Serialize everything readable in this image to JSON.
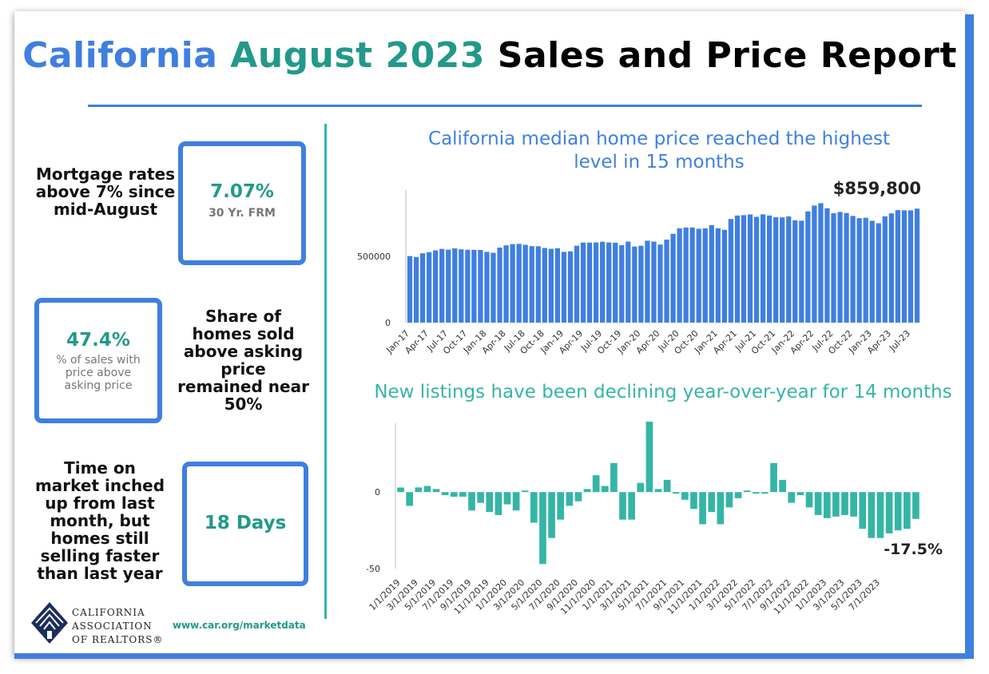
{
  "title": {
    "part1": "California",
    "part2": "August 2023",
    "part3": "Sales and Price Report"
  },
  "colors": {
    "accent_blue": "#3f7fe0",
    "accent_teal": "#35b5a5",
    "value_teal": "#22998a"
  },
  "stats": {
    "mortgage": {
      "label": "Mortgage rates above 7% since mid-August",
      "value": "7.07%",
      "sub": "30 Yr. FRM"
    },
    "asking": {
      "label": "Share of homes sold above asking price remained near 50%",
      "value": "47.4%",
      "sub": "% of sales with price above asking price"
    },
    "market": {
      "label": "Time on market inched up from last month, but homes still selling faster than last year",
      "value": "18 Days"
    }
  },
  "footer": {
    "logo_line1": "CALIFORNIA",
    "logo_line2": "ASSOCIATION",
    "logo_line3": "OF REALTORS®",
    "logo_icon": "car-logo-icon",
    "url": "www.car.org/marketdata"
  },
  "chart_data": [
    {
      "type": "bar",
      "title": "California median home price reached the highest level in 15 months",
      "annotation": "$859,800",
      "ylim": [
        0,
        1000000
      ],
      "yticks": [
        0,
        500000
      ],
      "ytick_labels": [
        "0",
        "500000"
      ],
      "xtick_labels": [
        "Jan-17",
        "Apr-17",
        "Jul-17",
        "Oct-17",
        "Jan-18",
        "Apr-18",
        "Jul-18",
        "Oct-18",
        "Jan-19",
        "Apr-19",
        "Jul-19",
        "Oct-19",
        "Jan-20",
        "Apr-20",
        "Jul-20",
        "Oct-20",
        "Jan-21",
        "Apr-21",
        "Jul-21",
        "Oct-21",
        "Jan-22",
        "Apr-22",
        "Jul-22",
        "Oct-22",
        "Jan-23",
        "Apr-23",
        "Jul-23"
      ],
      "values": [
        502000,
        495000,
        523000,
        532000,
        545000,
        556000,
        551000,
        560000,
        553000,
        550000,
        549000,
        548000,
        534000,
        527000,
        566000,
        583000,
        592000,
        594000,
        587000,
        577000,
        576000,
        563000,
        557000,
        561000,
        534000,
        538000,
        580000,
        604000,
        604000,
        605000,
        610000,
        605000,
        603000,
        584000,
        611000,
        574000,
        580000,
        618000,
        611000,
        589000,
        626000,
        670000,
        711000,
        717000,
        718000,
        708000,
        711000,
        735000,
        712000,
        700000,
        782000,
        808000,
        811000,
        816000,
        798000,
        817000,
        808000,
        795000,
        794000,
        801000,
        772000,
        769000,
        839000,
        883000,
        901000,
        863000,
        825000,
        835000,
        827000,
        805000,
        788000,
        791000,
        768000,
        750000,
        802000,
        824000,
        849000,
        847000,
        847000,
        859800
      ],
      "grid": false
    },
    {
      "type": "bar",
      "title": "New listings have been declining year-over-year for 14 months",
      "annotation": "-17.5%",
      "ylim": [
        -50,
        45
      ],
      "yticks": [
        -50,
        0
      ],
      "ytick_labels": [
        "-50",
        "0"
      ],
      "xtick_labels": [
        "1/1/2019",
        "3/1/2019",
        "5/1/2019",
        "7/1/2019",
        "9/1/2019",
        "11/1/2019",
        "1/1/2020",
        "3/1/2020",
        "5/1/2020",
        "7/1/2020",
        "9/1/2020",
        "11/1/2020",
        "1/1/2021",
        "3/1/2021",
        "5/1/2021",
        "7/1/2021",
        "9/1/2021",
        "11/1/2021",
        "1/1/2022",
        "3/1/2022",
        "5/1/2022",
        "7/1/2022",
        "9/1/2022",
        "11/1/2022",
        "1/1/2023",
        "3/1/2023",
        "5/1/2023",
        "7/1/2023"
      ],
      "values": [
        3,
        -9,
        3,
        4,
        2,
        -2,
        -3,
        -3,
        -12,
        -7,
        -13,
        -15,
        -8,
        -12,
        1,
        -20,
        -47,
        -30,
        -18,
        -9,
        -6,
        2,
        11,
        4,
        19,
        -18,
        -18,
        6,
        46,
        2,
        8,
        -1,
        -5,
        -11,
        -21,
        -13,
        -21,
        -10,
        -4,
        1,
        -1,
        -1,
        19,
        8,
        -7,
        -2,
        -10,
        -15,
        -17,
        -16,
        -15,
        -16,
        -24,
        -30,
        -30,
        -27,
        -25,
        -24,
        -17.5
      ],
      "grid": false
    }
  ]
}
